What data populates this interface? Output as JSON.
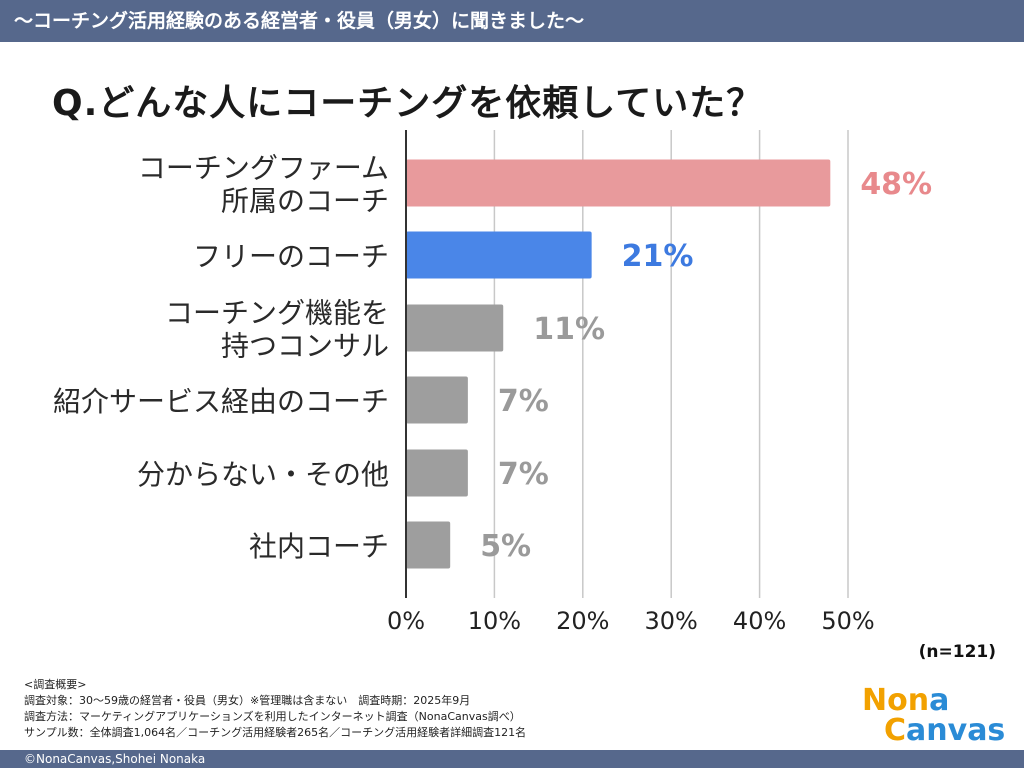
{
  "header": {
    "banner": "〜コーチング活用経験のある経営者・役員（男女）に聞きました〜",
    "question": "Q.どんな人にコーチングを依頼していた？"
  },
  "chart_data": {
    "type": "bar",
    "orientation": "horizontal",
    "title": "Q.どんな人にコーチングを依頼していた？",
    "categories": [
      [
        "コーチングファーム",
        "所属のコーチ"
      ],
      [
        "フリーのコーチ"
      ],
      [
        "コーチング機能を",
        "持つコンサル"
      ],
      [
        "紹介サービス経由のコーチ"
      ],
      [
        "分からない・その他"
      ],
      [
        "社内コーチ"
      ]
    ],
    "values": [
      48,
      21,
      11,
      7,
      7,
      5
    ],
    "value_labels": [
      "48%",
      "21%",
      "11%",
      "7%",
      "7%",
      "5%"
    ],
    "bar_colors": [
      "#e89a9c",
      "#4a86e8",
      "#9e9e9e",
      "#9e9e9e",
      "#9e9e9e",
      "#9e9e9e"
    ],
    "label_colors": [
      "#e8898c",
      "#3d7ae0",
      "#9a9a9a",
      "#9a9a9a",
      "#9a9a9a",
      "#9a9a9a"
    ],
    "xlim": [
      0,
      50
    ],
    "xticks": [
      0,
      10,
      20,
      30,
      40,
      50
    ],
    "xtick_labels": [
      "0%",
      "10%",
      "20%",
      "30%",
      "40%",
      "50%"
    ],
    "grid": true,
    "xlabel": "",
    "ylabel": ""
  },
  "sample": {
    "n_label": "(n=121)"
  },
  "notes": {
    "heading": "<調査概要>",
    "target": "調査対象：30〜59歳の経営者・役員（男女）※管理職は含まない　調査時期：2025年9月",
    "method": "調査方法：マーケティングアプリケーションズを利用したインターネット調査（NonaCanvas調べ）",
    "samples": "サンプル数：全体調査1,064名／コーチング活用経験者265名／コーチング活用経験者詳細調査121名"
  },
  "logo": {
    "part1": "Non",
    "part2": "a",
    "part3": "C",
    "part4": "anvas"
  },
  "footer": {
    "copyright": "©NonaCanvas,Shohei Nonaka"
  },
  "colors": {
    "banner": "#56688c",
    "axis": "#333333",
    "grid": "#c8c8c8"
  }
}
